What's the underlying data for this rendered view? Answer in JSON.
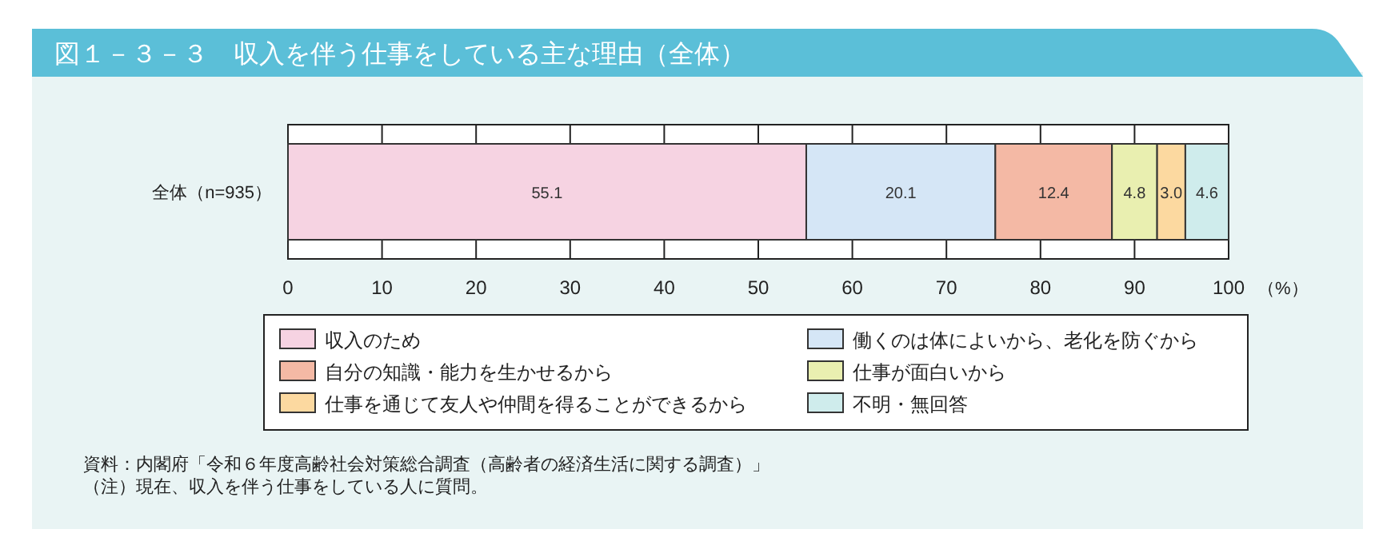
{
  "chart_data": {
    "type": "bar",
    "orientation": "horizontal",
    "stacked": true,
    "title": "図１－３－３　収入を伴う仕事をしている主な理由（全体）",
    "categories": [
      "全体（n=935）"
    ],
    "xlabel": "（%）",
    "series": [
      {
        "name": "収入のため",
        "color": "#f6d3e2",
        "values": [
          55.1
        ],
        "value_labels": [
          "55.1"
        ]
      },
      {
        "name": "働くのは体によいから、老化を防ぐから",
        "color": "#d5e6f6",
        "values": [
          20.1
        ],
        "value_labels": [
          "20.1"
        ]
      },
      {
        "name": "自分の知識・能力を生かせるから",
        "color": "#f4b9a5",
        "values": [
          12.4
        ],
        "value_labels": [
          "12.4"
        ]
      },
      {
        "name": "仕事が面白いから",
        "color": "#e9efb0",
        "values": [
          4.8
        ],
        "value_labels": [
          "4.8"
        ]
      },
      {
        "name": "仕事を通じて友人や仲間を得ることができるから",
        "color": "#fcd9a0",
        "values": [
          3.0
        ],
        "value_labels": [
          "3.0"
        ]
      },
      {
        "name": "不明・無回答",
        "color": "#cfecec",
        "values": [
          4.6
        ],
        "value_labels": [
          "4.6"
        ]
      }
    ],
    "xlim": [
      0,
      100
    ],
    "xticks": [
      0,
      10,
      20,
      30,
      40,
      50,
      60,
      70,
      80,
      90,
      100
    ],
    "legend": "bottom",
    "annotations": [
      "資料：内閣府「令和６年度高齢社会対策総合調査（高齢者の経済生活に関する調査）」",
      "（注）現在、収入を伴う仕事をしている人に質問。"
    ]
  }
}
